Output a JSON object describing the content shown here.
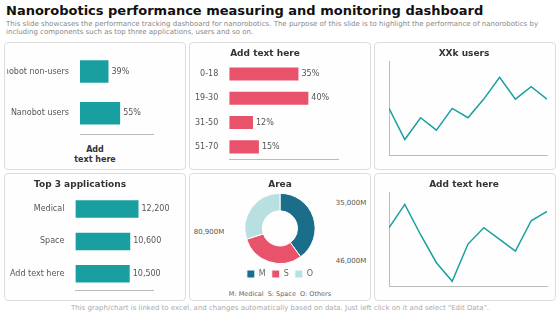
{
  "title": "Nanorobotics performance measuring and monitoring dashboard",
  "subtitle": "This slide showcases the performance tracking dashboard for nanorobotics. The purpose of this slide is to highlight the performance of nanorobotics by including components such as top three applications, users and so on.",
  "footer": "This graph/chart is linked to excel, and changes automatically based on data. Just left click on it and select \"Edit Data\".",
  "chart_data": [
    {
      "type": "bar",
      "orientation": "horizontal",
      "categories": [
        "Nanobot non-users",
        "Nanobot users"
      ],
      "values": [
        39,
        55
      ],
      "value_labels": [
        "39%",
        "55%"
      ],
      "data_labels": true,
      "color": "#1a9fa0",
      "xlim": [
        0,
        100
      ],
      "grid": false,
      "tick_labels": "y",
      "annotations": [
        "Add\ntext here"
      ]
    },
    {
      "type": "bar",
      "orientation": "horizontal",
      "title": "Add text here",
      "categories": [
        "0-18",
        "19-30",
        "31-50",
        "51-70"
      ],
      "values": [
        35,
        40,
        12,
        15
      ],
      "value_labels": [
        "35%",
        "40%",
        "12%",
        "15%"
      ],
      "data_labels": true,
      "color": "#e8526a",
      "xlim": [
        0,
        55
      ],
      "grid": false,
      "tick_labels": "y"
    },
    {
      "type": "line",
      "title": "XXk users",
      "x": [
        0,
        1,
        2,
        3,
        4,
        5,
        6,
        7,
        8,
        9,
        10
      ],
      "values": [
        3.5,
        2.5,
        3.2,
        2.8,
        3.5,
        3.2,
        3.8,
        4.5,
        3.8,
        4.2,
        3.8
      ],
      "color": "#1a9fa0",
      "xlim": [
        0,
        10
      ],
      "ylim": [
        2,
        5
      ],
      "grid": false,
      "tick_labels": false
    },
    {
      "type": "bar",
      "orientation": "horizontal",
      "title": "Top 3 applications",
      "categories": [
        "Medical",
        "Space",
        "Add text here"
      ],
      "values": [
        12200,
        10600,
        10500
      ],
      "value_labels": [
        "12,200",
        "10,600",
        "10,500"
      ],
      "data_labels": true,
      "color": "#1a9fa0",
      "xlim": [
        0,
        15000
      ],
      "grid": false,
      "tick_labels": "y"
    },
    {
      "type": "doughnut",
      "title": "Area",
      "categories": [
        "M",
        "S",
        "O"
      ],
      "values": [
        40,
        30,
        30
      ],
      "colors": [
        "#1a6e8a",
        "#e8526a",
        "#b8e0e0"
      ],
      "legend": "bottom",
      "annotations": [
        "35,000M",
        "46,000M",
        "80,900M"
      ],
      "footnote": "M: Medical  S: Space  O: Others"
    },
    {
      "type": "line",
      "title": "Add text here",
      "x": [
        0,
        1,
        2,
        3,
        4,
        5,
        6,
        7,
        8,
        9,
        10
      ],
      "values": [
        3.5,
        4.5,
        3.2,
        2.0,
        1.2,
        2.8,
        3.5,
        3.0,
        2.5,
        3.8,
        4.2
      ],
      "color": "#1a9fa0",
      "xlim": [
        0,
        10
      ],
      "ylim": [
        1,
        5
      ],
      "grid": false,
      "tick_labels": false
    }
  ]
}
